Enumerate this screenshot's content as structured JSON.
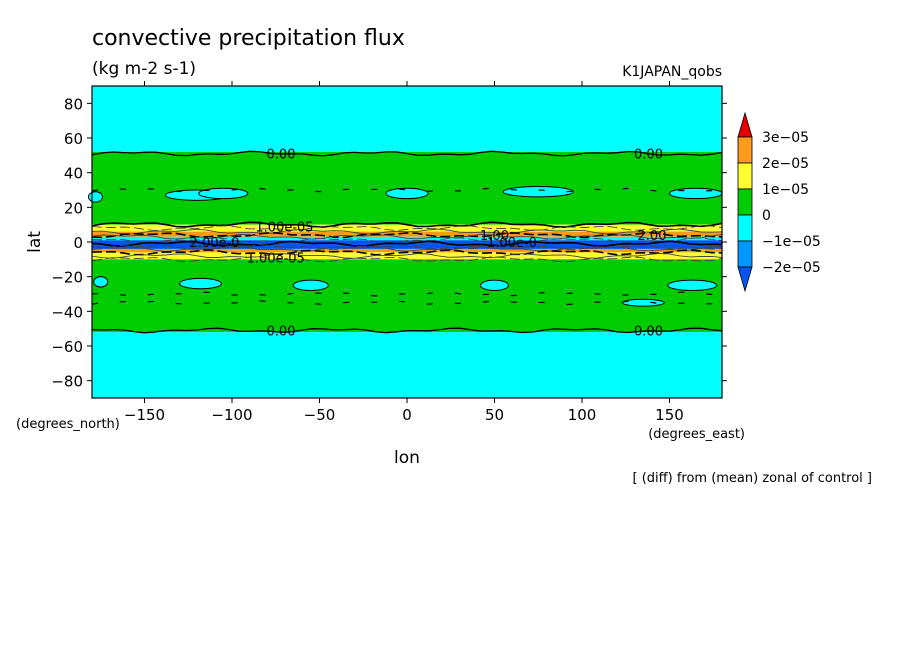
{
  "chart_data": {
    "type": "heatmap",
    "title": "convective precipitation flux",
    "units": "(kg m-2 s-1)",
    "dataset": "K1JAPAN_qobs",
    "xlabel": "lon",
    "ylabel": "lat",
    "x_unit_label": "(degrees_east)",
    "y_unit_label": "(degrees_north)",
    "footnote": "[ (diff) from (mean) zonal of control ]",
    "xlim": [
      -180,
      180
    ],
    "ylim": [
      -90,
      90
    ],
    "x_ticks": [
      -150,
      -100,
      -50,
      0,
      50,
      100,
      150
    ],
    "x_tick_labels": [
      "−150",
      "−100",
      "−50",
      "0",
      "50",
      "100",
      "150"
    ],
    "y_ticks": [
      80,
      60,
      40,
      20,
      0,
      -20,
      -40,
      -60,
      -80
    ],
    "y_tick_labels": [
      "80",
      "60",
      "40",
      "20",
      "0",
      "−20",
      "−40",
      "−60",
      "−80"
    ],
    "colorbar": {
      "levels": [
        "3e−05",
        "2e−05",
        "1e−05",
        "0",
        "−1e−05",
        "−2e−05"
      ],
      "colors": [
        "#e60000",
        "#ff9a1a",
        "#ffff33",
        "#00cc00",
        "#00ffff",
        "#0099ff",
        "#0055ee"
      ]
    },
    "lat_bands": [
      {
        "lat_from": 90,
        "lat_to": 52,
        "color": "#00ffff"
      },
      {
        "lat_from": 52,
        "lat_to": 10,
        "color": "#00cc00"
      },
      {
        "lat_from": 10,
        "lat_to": 6,
        "color": "#ffff33"
      },
      {
        "lat_from": 6,
        "lat_to": 3,
        "color": "#ff9a1a"
      },
      {
        "lat_from": 3,
        "lat_to": 1,
        "color": "#00ffff"
      },
      {
        "lat_from": 1,
        "lat_to": -4,
        "color": "#0055ee"
      },
      {
        "lat_from": -4,
        "lat_to": -6,
        "color": "#ff9a1a"
      },
      {
        "lat_from": -6,
        "lat_to": -10,
        "color": "#ffff33"
      },
      {
        "lat_from": -10,
        "lat_to": -52,
        "color": "#00cc00"
      },
      {
        "lat_from": -52,
        "lat_to": -90,
        "color": "#00ffff"
      }
    ],
    "negative_patches": [
      {
        "lon": -120,
        "lat": 27,
        "dlon": 18,
        "dlat": 3
      },
      {
        "lon": -105,
        "lat": 28,
        "dlon": 14,
        "dlat": 3
      },
      {
        "lon": 0,
        "lat": 28,
        "dlon": 12,
        "dlat": 3
      },
      {
        "lon": 75,
        "lat": 29,
        "dlon": 20,
        "dlat": 3
      },
      {
        "lon": 165,
        "lat": 28,
        "dlon": 15,
        "dlat": 3
      },
      {
        "lon": -178,
        "lat": 26,
        "dlon": 4,
        "dlat": 3
      },
      {
        "lon": -118,
        "lat": -24,
        "dlon": 12,
        "dlat": 3
      },
      {
        "lon": -55,
        "lat": -25,
        "dlon": 10,
        "dlat": 3
      },
      {
        "lon": 50,
        "lat": -25,
        "dlon": 8,
        "dlat": 3
      },
      {
        "lon": 163,
        "lat": -25,
        "dlon": 14,
        "dlat": 3
      },
      {
        "lon": -175,
        "lat": -23,
        "dlon": 4,
        "dlat": 3
      },
      {
        "lon": 135,
        "lat": -35,
        "dlon": 12,
        "dlat": 2
      }
    ],
    "contour_lines": [
      {
        "lat": 51,
        "value": 0.0
      },
      {
        "lat": -51,
        "value": 0.0
      }
    ],
    "contour_labels": [
      {
        "lon": -72,
        "lat": 51,
        "text": "0.00"
      },
      {
        "lon": 138,
        "lat": 51,
        "text": "0.00"
      },
      {
        "lon": -72,
        "lat": -51,
        "text": "0.00"
      },
      {
        "lon": 138,
        "lat": -51,
        "text": "0.00"
      },
      {
        "lon": -70,
        "lat": 9,
        "text": "1.00e-05"
      },
      {
        "lon": -75,
        "lat": -9,
        "text": "1.00e-05"
      },
      {
        "lon": 50,
        "lat": 4,
        "text": "1.00"
      },
      {
        "lon": 60,
        "lat": 0,
        "text": "1.00e-0"
      },
      {
        "lon": -110,
        "lat": 0,
        "text": "2.00e-0"
      },
      {
        "lon": 140,
        "lat": 4,
        "text": "2.00"
      }
    ]
  }
}
